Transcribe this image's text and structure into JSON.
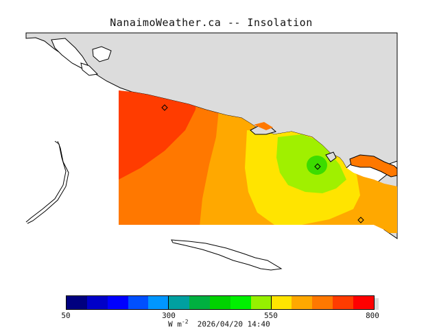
{
  "header": {
    "title": "NanaimoWeather.ca -- Insolation"
  },
  "map": {
    "variable": "Insolation",
    "colors": {
      "land_gray": "#dcdcdc",
      "coastline": "#000000",
      "zone_650_700": "#ff3c00",
      "zone_600_650": "#ff7800",
      "zone_550_600": "#ffa800",
      "zone_500_550": "#ffe400",
      "zone_450_500": "#a0f000",
      "zone_400_450": "#3cdc00"
    },
    "station_marker_icon": "diamond-icon",
    "station_count": 3
  },
  "legend": {
    "min_label": "50",
    "mid_label": "300",
    "mid2_label": "550",
    "max_label": "800",
    "units_prefix": "W m",
    "units_exponent": "-2",
    "timestamp": "2026/04/20 14:40",
    "colors": [
      "#00007f",
      "#0000c8",
      "#0000ff",
      "#0050ff",
      "#0096ff",
      "#00a0a0",
      "#00b040",
      "#00d200",
      "#00f000",
      "#96f000",
      "#ffe400",
      "#ffa800",
      "#ff7800",
      "#ff3c00",
      "#ff0000"
    ]
  }
}
